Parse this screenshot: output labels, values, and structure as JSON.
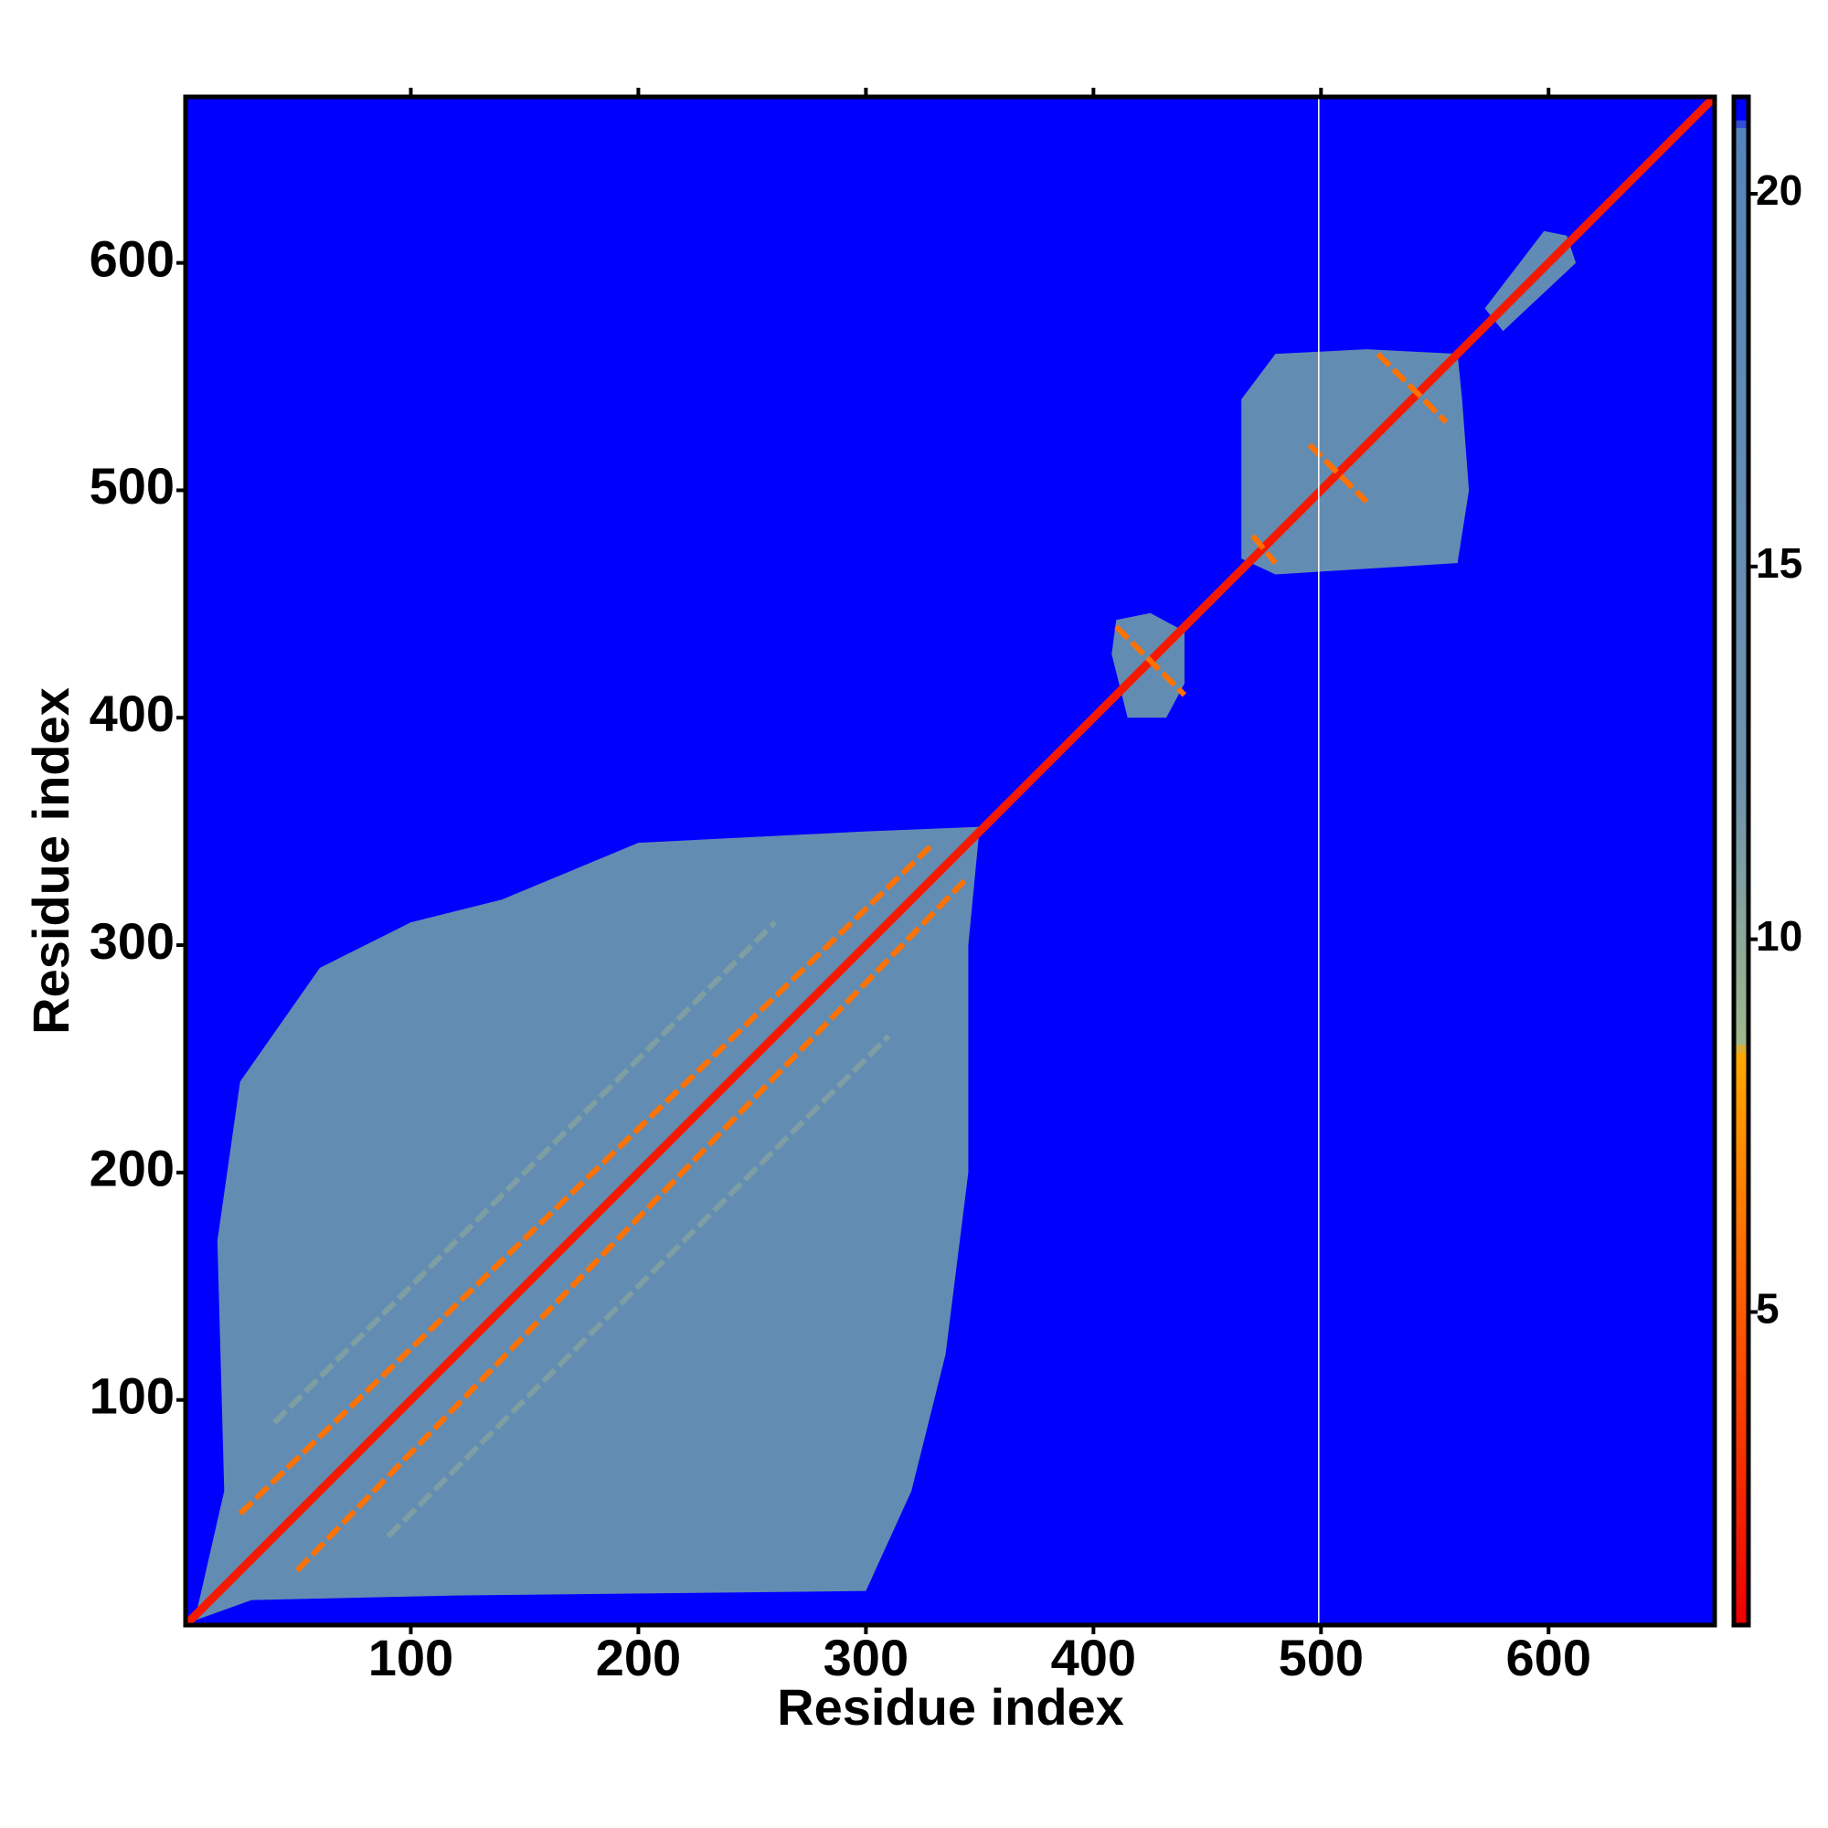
{
  "chart_data": {
    "type": "heatmap",
    "xlabel": "Residue index",
    "ylabel": "Residue index",
    "xlim": [
      1,
      673
    ],
    "ylim": [
      1,
      673
    ],
    "xticks": [
      100,
      200,
      300,
      400,
      500,
      600
    ],
    "yticks": [
      100,
      200,
      300,
      400,
      500,
      600
    ],
    "background_value": 21.3,
    "clim": [
      0.8,
      21.3
    ],
    "cticks": [
      5,
      10,
      15,
      20
    ],
    "colorscale": [
      [
        0.8,
        "#ee0000"
      ],
      [
        5,
        "#ff5a00"
      ],
      [
        8.5,
        "#ffaa00"
      ],
      [
        8.6,
        "#9fb88a"
      ],
      [
        12,
        "#6f93ad"
      ],
      [
        20.9,
        "#5584bb"
      ],
      [
        21,
        "#0000ff"
      ],
      [
        21.3,
        "#0000ff"
      ]
    ],
    "regions": [
      {
        "value": 16,
        "points": [
          [
            5,
            3
          ],
          [
            30,
            12
          ],
          [
            120,
            14
          ],
          [
            300,
            16
          ],
          [
            320,
            60
          ],
          [
            335,
            120
          ],
          [
            345,
            200
          ],
          [
            345,
            300
          ],
          [
            350,
            352
          ],
          [
            300,
            350
          ],
          [
            200,
            345
          ],
          [
            140,
            320
          ],
          [
            100,
            310
          ],
          [
            60,
            290
          ],
          [
            25,
            240
          ],
          [
            15,
            170
          ],
          [
            18,
            60
          ]
        ]
      },
      {
        "value": 16,
        "points": [
          [
            408,
            428
          ],
          [
            415,
            400
          ],
          [
            432,
            400
          ],
          [
            440,
            415
          ],
          [
            440,
            438
          ],
          [
            425,
            446
          ],
          [
            410,
            443
          ]
        ]
      },
      {
        "value": 16,
        "points": [
          [
            465,
            470
          ],
          [
            480,
            463
          ],
          [
            560,
            468
          ],
          [
            565,
            500
          ],
          [
            562,
            540
          ],
          [
            560,
            560
          ],
          [
            520,
            562
          ],
          [
            480,
            560
          ],
          [
            465,
            540
          ]
        ]
      },
      {
        "value": 17,
        "points": [
          [
            572,
            580
          ],
          [
            580,
            570
          ],
          [
            612,
            600
          ],
          [
            608,
            612
          ],
          [
            598,
            614
          ]
        ]
      }
    ],
    "bands": [
      {
        "value": 2,
        "from": [
          1,
          1
        ],
        "to": [
          673,
          673
        ]
      },
      {
        "value": 6,
        "from": [
          25,
          50
        ],
        "to": [
          330,
          345
        ]
      },
      {
        "value": 6,
        "from": [
          50,
          25
        ],
        "to": [
          345,
          330
        ]
      },
      {
        "value": 11,
        "from": [
          40,
          90
        ],
        "to": [
          260,
          310
        ]
      },
      {
        "value": 11,
        "from": [
          90,
          40
        ],
        "to": [
          310,
          260
        ]
      },
      {
        "value": 6,
        "from": [
          410,
          440
        ],
        "to": [
          440,
          410
        ]
      },
      {
        "value": 6,
        "from": [
          495,
          520
        ],
        "to": [
          520,
          495
        ]
      },
      {
        "value": 6,
        "from": [
          525,
          560
        ],
        "to": [
          555,
          530
        ]
      },
      {
        "value": 6,
        "from": [
          470,
          480
        ],
        "to": [
          480,
          468
        ]
      }
    ],
    "null_columns": [
      499
    ]
  }
}
